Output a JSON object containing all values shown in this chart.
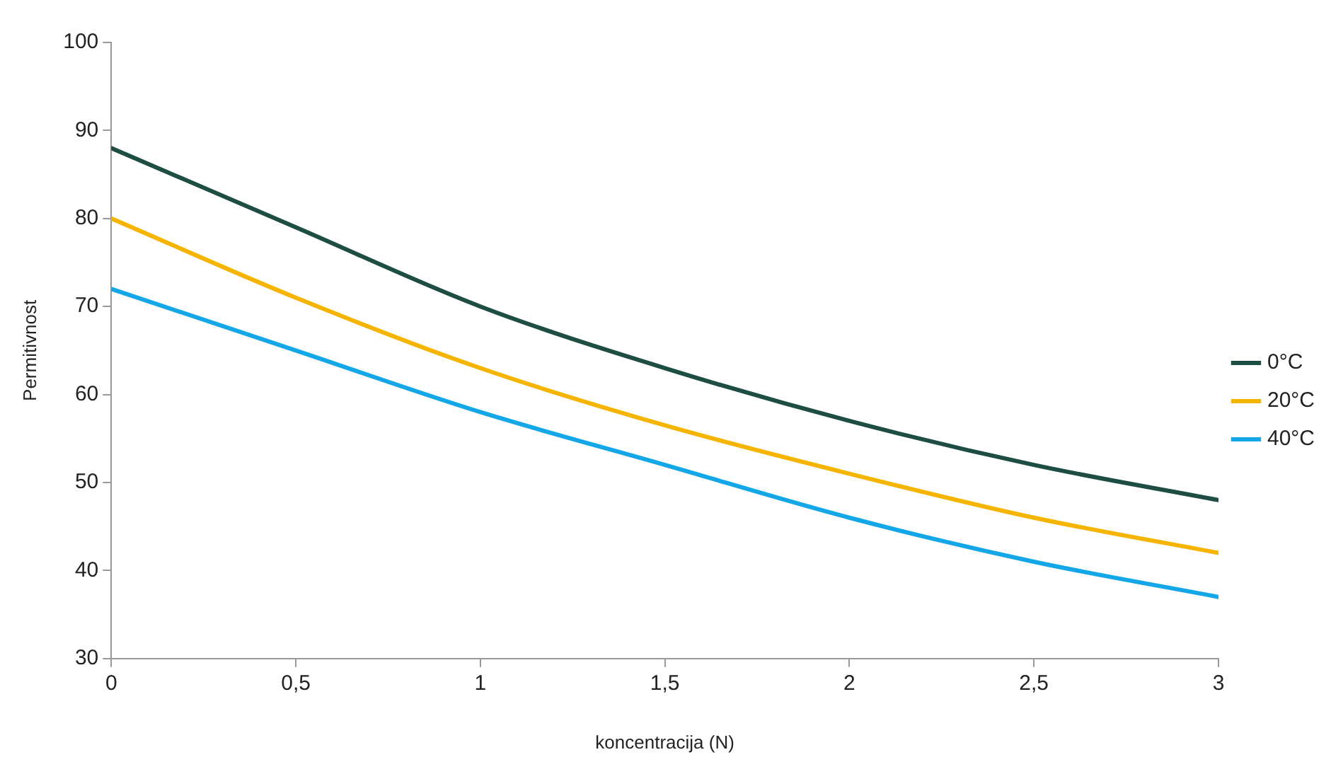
{
  "chart_data": {
    "type": "line",
    "xlabel": "koncentracija (N)",
    "ylabel": "Permitivnost",
    "x": [
      0,
      0.5,
      1,
      1.5,
      2,
      2.5,
      3
    ],
    "series": [
      {
        "name": "0°C",
        "color": "#1e4d43",
        "values": [
          88,
          79,
          70,
          63,
          57,
          52,
          48
        ]
      },
      {
        "name": "20°C",
        "color": "#f5b400",
        "values": [
          80,
          71,
          63,
          56.5,
          51,
          46,
          42
        ]
      },
      {
        "name": "40°C",
        "color": "#14a7e8",
        "values": [
          72,
          65,
          58,
          52,
          46,
          41,
          37
        ]
      }
    ],
    "xlim": [
      0,
      3
    ],
    "xticks": [
      0,
      {
        "value": 0.5,
        "label": "0,5"
      },
      1,
      {
        "value": 1.5,
        "label": "1,5"
      },
      2,
      {
        "value": 2.5,
        "label": "2,5"
      },
      3
    ],
    "ylim": [
      30,
      100
    ],
    "yticks": [
      30,
      40,
      50,
      60,
      70,
      80,
      90,
      100
    ],
    "grid": false,
    "legend": "right",
    "marker": "none",
    "line_style": "solid"
  }
}
